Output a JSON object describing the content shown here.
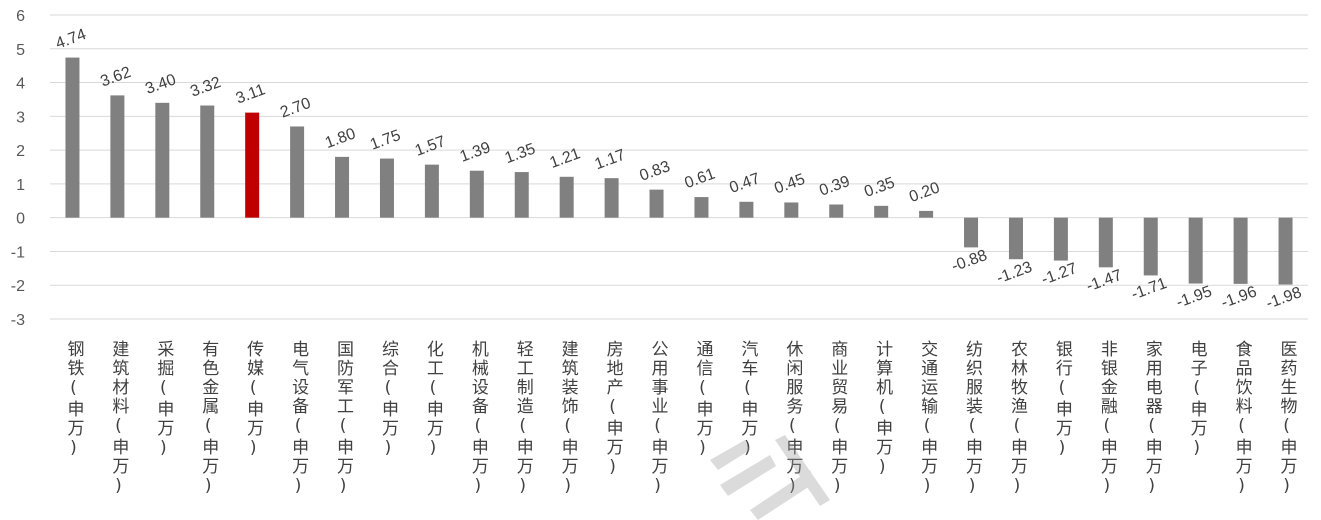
{
  "chart_data": {
    "type": "bar",
    "categories": [
      "钢铁(申万)",
      "建筑材料(申万)",
      "采掘(申万)",
      "有色金属(申万)",
      "传媒(申万)",
      "电气设备(申万)",
      "国防军工(申万)",
      "综合(申万)",
      "化工(申万)",
      "机械设备(申万)",
      "轻工制造(申万)",
      "建筑装饰(申万)",
      "房地产(申万)",
      "公用事业(申万)",
      "通信(申万)",
      "汽车(申万)",
      "休闲服务(申万)",
      "商业贸易(申万)",
      "计算机(申万)",
      "交通运输(申万)",
      "纺织服装(申万)",
      "农林牧渔(申万)",
      "银行(申万)",
      "非银金融(申万)",
      "家用电器(申万)",
      "电子(申万)",
      "食品饮料(申万)",
      "医药生物(申万)"
    ],
    "values": [
      4.74,
      3.62,
      3.4,
      3.32,
      3.11,
      2.7,
      1.8,
      1.75,
      1.57,
      1.39,
      1.35,
      1.21,
      1.17,
      0.83,
      0.61,
      0.47,
      0.45,
      0.39,
      0.35,
      0.2,
      -0.88,
      -1.23,
      -1.27,
      -1.47,
      -1.71,
      -1.95,
      -1.96,
      -1.98
    ],
    "labels": [
      "4.74",
      "3.62",
      "3.40",
      "3.32",
      "3.11",
      "2.70",
      "1.80",
      "1.75",
      "1.57",
      "1.39",
      "1.35",
      "1.21",
      "1.17",
      "0.83",
      "0.61",
      "0.47",
      "0.45",
      "0.39",
      "0.35",
      "0.20",
      "-0.88",
      "-1.23",
      "-1.27",
      "-1.47",
      "-1.71",
      "-1.95",
      "-1.96",
      "-1.98"
    ],
    "yticks": [
      "6",
      "5",
      "4",
      "3",
      "2",
      "1",
      "0",
      "-1",
      "-2",
      "-3"
    ],
    "ylim": [
      -3,
      6
    ],
    "grid": true,
    "bar_color": "#808080",
    "highlight_index": 4,
    "highlight_color": "#c00000"
  }
}
